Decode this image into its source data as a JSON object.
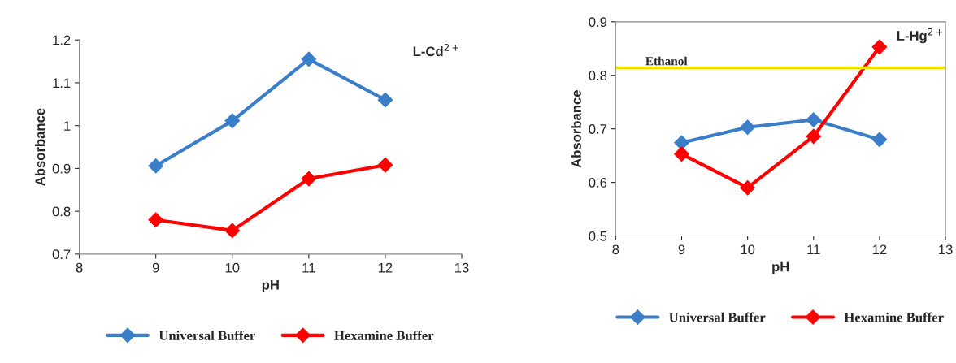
{
  "chart_data": [
    {
      "type": "line",
      "ylabel": "Absorbance",
      "xlabel": "pH",
      "annotations": [
        "L-Cd$^{2+}$"
      ],
      "x": [
        9,
        10,
        11,
        12
      ],
      "series": [
        {
          "name": "Universal Buffer",
          "color": "#3a7dc9",
          "values": [
            0.906,
            1.011,
            1.155,
            1.06
          ]
        },
        {
          "name": "Hexamine Buffer",
          "color": "#ff0000",
          "values": [
            0.78,
            0.755,
            0.876,
            0.908
          ]
        }
      ],
      "xlim": [
        8,
        13
      ],
      "xticks": [
        8,
        9,
        10,
        11,
        12,
        13
      ],
      "ylim": [
        0.7,
        1.2
      ],
      "yticks": [
        0.7,
        0.8,
        0.9,
        {
          "value": 1,
          "label": "1"
        },
        1.1,
        1.2
      ],
      "marker": "diamond",
      "legend": "bottom",
      "grid": false
    },
    {
      "type": "line",
      "ylabel": "Absorbance",
      "xlabel": "pH",
      "annotations": [
        "L-Hg$^{2+}$"
      ],
      "x": [
        9,
        10,
        11,
        12
      ],
      "series": [
        {
          "name": "Universal Buffer",
          "color": "#3a7dc9",
          "values": [
            0.674,
            0.703,
            0.717,
            0.68
          ]
        },
        {
          "name": "Hexamine Buffer",
          "color": "#ff0000",
          "values": [
            0.653,
            0.59,
            0.686,
            0.853
          ]
        }
      ],
      "ref_lines": [
        {
          "axis": "y",
          "value": 0.814,
          "label": "Ethanol",
          "color": "#f0e000"
        }
      ],
      "xlim": [
        8,
        13
      ],
      "xticks": [
        8,
        9,
        10,
        11,
        12,
        13
      ],
      "ylim": [
        0.5,
        0.9
      ],
      "yticks": [
        0.5,
        0.6,
        0.7,
        0.8,
        0.9
      ],
      "marker": "diamond",
      "legend": "bottom",
      "grid": false
    }
  ]
}
